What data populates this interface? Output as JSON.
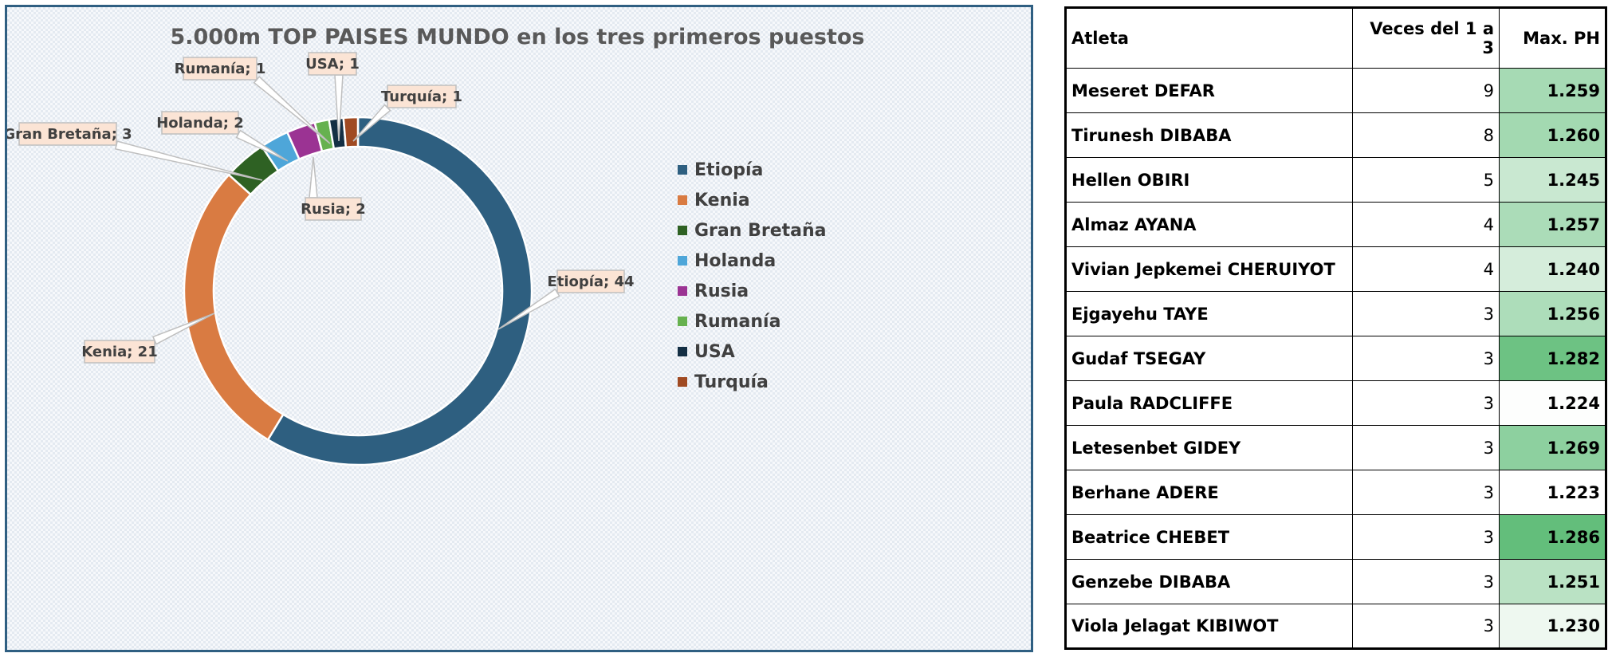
{
  "chart_data": {
    "type": "pie",
    "title": "5.000m TOP PAISES MUNDO en los tres primeros puestos",
    "categories": [
      "Etiopía",
      "Kenia",
      "Gran Bretaña",
      "Holanda",
      "Rusia",
      "Rumanía",
      "USA",
      "Turquía"
    ],
    "values": [
      44,
      21,
      3,
      2,
      2,
      1,
      1,
      1
    ],
    "colors": [
      "#2e5f80",
      "#d97b42",
      "#2e6123",
      "#4ea6d9",
      "#9b3393",
      "#66b14f",
      "#142f44",
      "#a04a22"
    ],
    "data_labels": [
      "Etiopía; 44",
      "Kenia; 21",
      "Gran Bretaña; 3",
      "Holanda; 2",
      "Rusia; 2",
      "Rumanía; 1",
      "USA; 1",
      "Turquía; 1"
    ],
    "legend": "right",
    "donut": true
  },
  "table": {
    "headers": [
      "Atleta",
      "Veces del 1 a 3",
      "Max. PH"
    ],
    "rows": [
      {
        "name": "Meseret DEFAR",
        "times": "9",
        "ph": "1.259",
        "ph_value": 1.259
      },
      {
        "name": "Tirunesh DIBABA",
        "times": "8",
        "ph": "1.260",
        "ph_value": 1.26
      },
      {
        "name": "Hellen OBIRI",
        "times": "5",
        "ph": "1.245",
        "ph_value": 1.245
      },
      {
        "name": "Almaz AYANA",
        "times": "4",
        "ph": "1.257",
        "ph_value": 1.257
      },
      {
        "name": "Vivian Jepkemei CHERUIYOT",
        "times": "4",
        "ph": "1.240",
        "ph_value": 1.24
      },
      {
        "name": "Ejgayehu TAYE",
        "times": "3",
        "ph": "1.256",
        "ph_value": 1.256
      },
      {
        "name": "Gudaf TSEGAY",
        "times": "3",
        "ph": "1.282",
        "ph_value": 1.282
      },
      {
        "name": "Paula RADCLIFFE",
        "times": "3",
        "ph": "1.224",
        "ph_value": 1.224
      },
      {
        "name": "Letesenbet GIDEY",
        "times": "3",
        "ph": "1.269",
        "ph_value": 1.269
      },
      {
        "name": "Berhane ADERE",
        "times": "3",
        "ph": "1.223",
        "ph_value": 1.223
      },
      {
        "name": "Beatrice CHEBET",
        "times": "3",
        "ph": "1.286",
        "ph_value": 1.286
      },
      {
        "name": "Genzebe DIBABA",
        "times": "3",
        "ph": "1.251",
        "ph_value": 1.251
      },
      {
        "name": "Viola Jelagat KIBIWOT",
        "times": "3",
        "ph": "1.230",
        "ph_value": 1.23
      }
    ],
    "ph_scale": {
      "low_color": "#ffffff",
      "high_color": "#63be7b"
    }
  }
}
